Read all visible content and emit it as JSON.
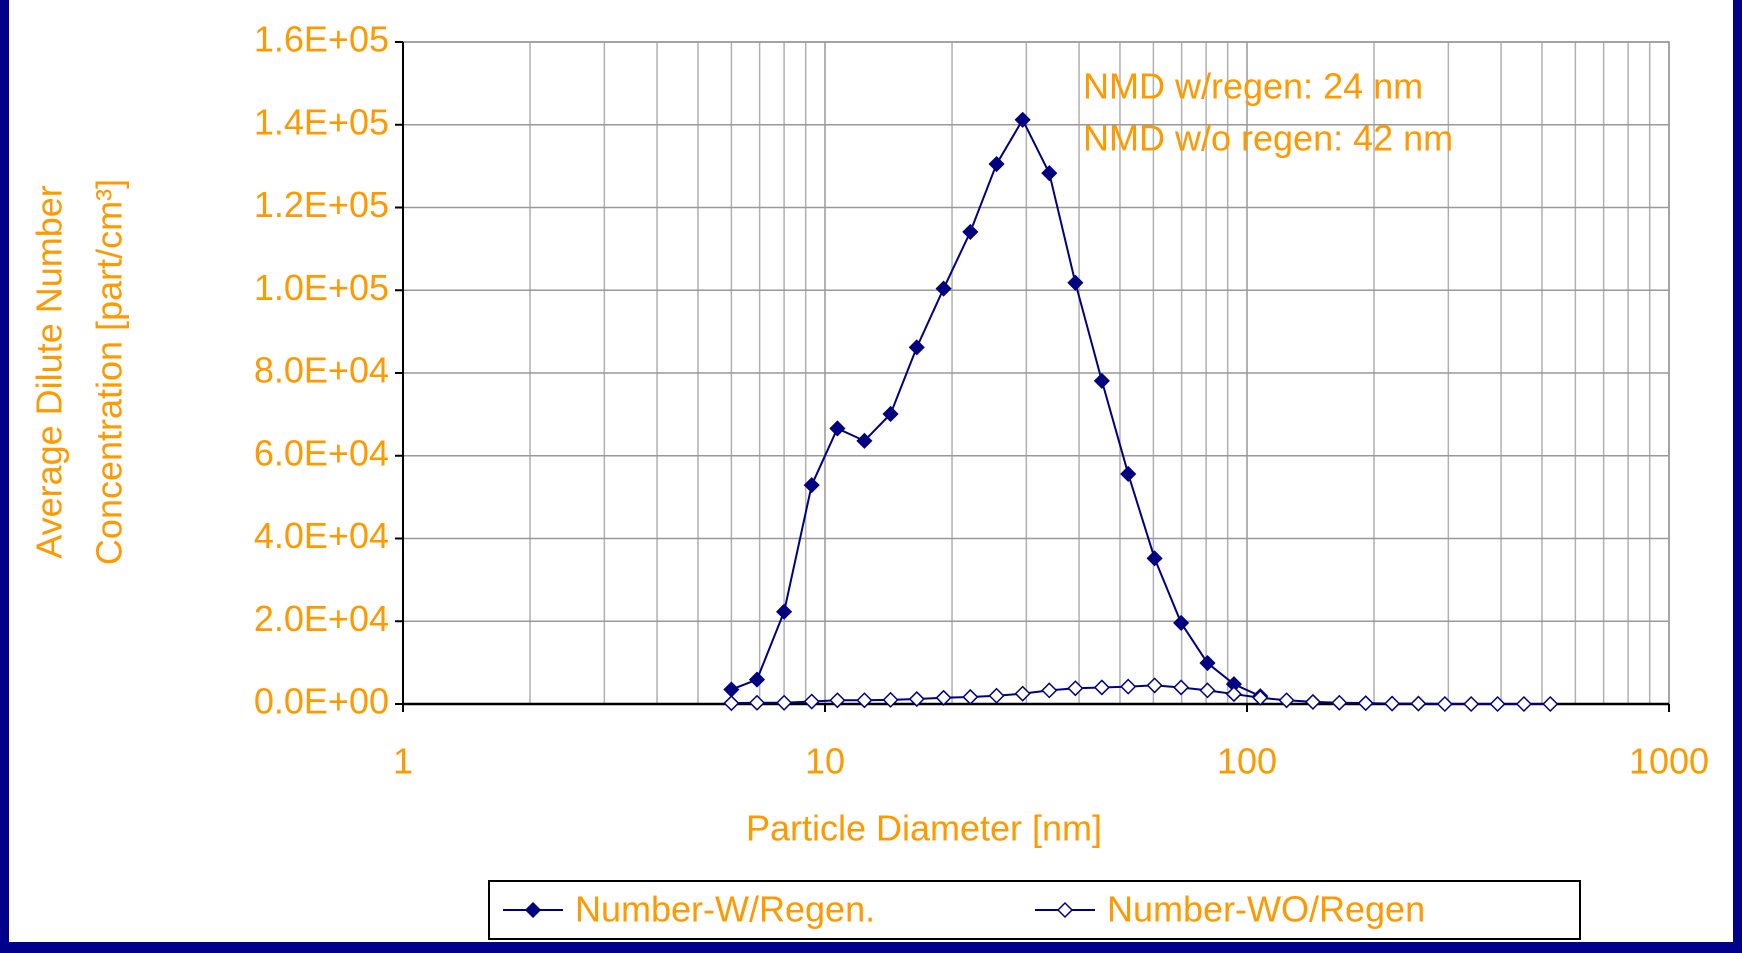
{
  "chart_data": {
    "type": "line",
    "x_label": "Particle Diameter [nm]",
    "y_label": [
      "Average Dilute Number",
      "Concentration [part/cm³]"
    ],
    "annotations": [
      "NMD w/regen: 24 nm",
      "NMD w/o regen: 42 nm"
    ],
    "x": [
      6.0,
      6.9,
      8.0,
      9.3,
      10.7,
      12.4,
      14.3,
      16.5,
      19.1,
      22.1,
      25.5,
      29.4,
      34.0,
      39.2,
      45.3,
      52.3,
      60.4,
      69.8,
      80.6,
      93.1,
      107.5,
      124.1,
      143.3,
      165.5,
      191.1,
      220.7,
      254.8,
      294.3,
      339.8,
      392.4,
      453.1,
      523.3
    ],
    "series": [
      {
        "name": "Number-W/Regen.",
        "color": "#000080",
        "marker": "filled-diamond",
        "values": [
          3500,
          5900,
          22300,
          52900,
          66600,
          63600,
          70100,
          86200,
          100400,
          114100,
          130500,
          141200,
          128300,
          101800,
          78100,
          55600,
          35200,
          19600,
          9900,
          4800,
          1900,
          null,
          null,
          null,
          null,
          null,
          null,
          null,
          null,
          null,
          null,
          null
        ]
      },
      {
        "name": "Number-WO/Regen",
        "color": "#000080",
        "marker": "open-diamond",
        "values": [
          200,
          300,
          300,
          600,
          900,
          900,
          1000,
          1200,
          1500,
          1700,
          2000,
          2500,
          3300,
          3800,
          4000,
          4200,
          4500,
          4000,
          3300,
          2400,
          1500,
          900,
          500,
          300,
          200,
          100,
          100,
          0,
          0,
          0,
          0,
          0
        ]
      }
    ],
    "xlim": [
      1,
      1000
    ],
    "xticks": [
      1,
      10,
      100,
      1000
    ],
    "x_log": true,
    "minor_grid": true,
    "ylim": [
      0,
      160000
    ],
    "yticks": [
      {
        "value": 0,
        "label": "0.0E+00"
      },
      {
        "value": 20000,
        "label": "2.0E+04"
      },
      {
        "value": 40000,
        "label": "4.0E+04"
      },
      {
        "value": 60000,
        "label": "6.0E+04"
      },
      {
        "value": 80000,
        "label": "8.0E+04"
      },
      {
        "value": 100000,
        "label": "1.0E+05"
      },
      {
        "value": 120000,
        "label": "1.2E+05"
      },
      {
        "value": 140000,
        "label": "1.4E+05"
      },
      {
        "value": 160000,
        "label": "1.6E+05"
      }
    ],
    "grid": true,
    "legend": "bottom"
  }
}
